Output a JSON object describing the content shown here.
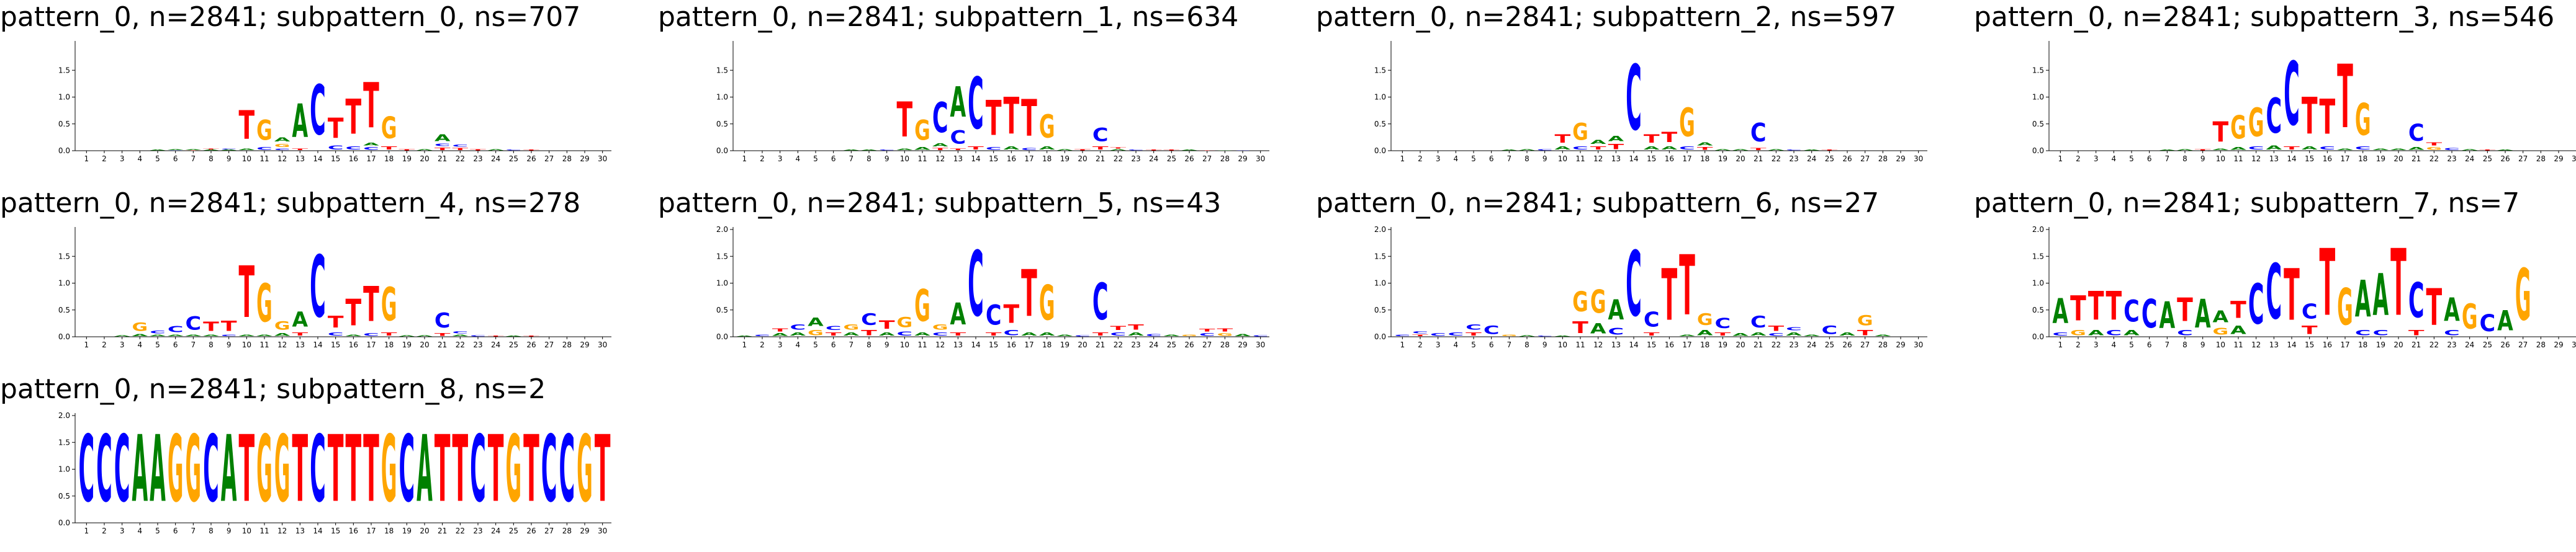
{
  "colors": {
    "A": "#008000",
    "C": "#0000ff",
    "G": "#ffa500",
    "T": "#ff0000"
  },
  "chart_data": [
    {
      "type": "sequence-logo",
      "title": "pattern_0, n=2841; subpattern_0, ns=707",
      "positions": [
        1,
        2,
        3,
        4,
        5,
        6,
        7,
        8,
        9,
        10,
        11,
        12,
        13,
        14,
        15,
        16,
        17,
        18,
        19,
        20,
        21,
        22,
        23,
        24,
        25,
        26,
        27,
        28,
        29,
        30
      ],
      "yticks": [
        "0.0",
        "0.5",
        "1.0",
        "1.5"
      ],
      "ylim": [
        0,
        2.0
      ],
      "letters": [
        {},
        {},
        {},
        {},
        {
          "A": 0.02
        },
        {
          "A": 0.02,
          "C": 0.01
        },
        {
          "A": 0.02,
          "T": 0.01
        },
        {
          "A": 0.02,
          "T": 0.02
        },
        {
          "A": 0.02,
          "C": 0.02
        },
        {
          "A": 0.05,
          "T": 0.85
        },
        {
          "C": 0.08,
          "G": 0.6
        },
        {
          "A": 0.12,
          "C": 0.05,
          "G": 0.1
        },
        {
          "T": 0.05,
          "A": 1.0
        },
        {
          "C": 1.5
        },
        {
          "C": 0.12,
          "T": 0.6
        },
        {
          "C": 0.1,
          "T": 1.05
        },
        {
          "C": 0.08,
          "A": 0.08,
          "T": 1.35
        },
        {
          "T": 0.1,
          "G": 0.65
        },
        {
          "T": 0.03
        },
        {
          "A": 0.03
        },
        {
          "T": 0.07,
          "C": 0.07,
          "A": 0.2,
          "C2": 0.0
        },
        {
          "T": 0.06,
          "C": 0.06
        },
        {
          "T": 0.04
        },
        {
          "A": 0.03
        },
        {
          "C": 0.02
        },
        {
          "T": 0.02
        },
        {},
        {},
        {},
        {}
      ]
    },
    {
      "type": "sequence-logo",
      "title": "pattern_0, n=2841; subpattern_1, ns=634",
      "positions": [
        1,
        2,
        3,
        4,
        5,
        6,
        7,
        8,
        9,
        10,
        11,
        12,
        13,
        14,
        15,
        16,
        17,
        18,
        19,
        20,
        21,
        22,
        23,
        24,
        25,
        26,
        27,
        28,
        29,
        30
      ],
      "yticks": [
        "0.0",
        "0.5",
        "1.0",
        "1.5"
      ],
      "ylim": [
        0,
        2.0
      ],
      "letters": [
        {},
        {},
        {},
        {},
        {},
        {},
        {
          "A": 0.02
        },
        {
          "A": 0.02
        },
        {
          "C": 0.02
        },
        {
          "A": 0.05,
          "T": 1.05
        },
        {
          "A": 0.08,
          "G": 0.6
        },
        {
          "T": 0.06,
          "A": 0.1,
          "C": 0.9
        },
        {
          "T": 0.05,
          "C": 0.4,
          "A": 0.9
        },
        {
          "T": 0.1,
          "C": 1.55
        },
        {
          "C": 0.08,
          "T": 1.05
        },
        {
          "A": 0.1,
          "T": 1.1
        },
        {
          "C": 0.06,
          "T": 1.1
        },
        {
          "A": 0.1,
          "G": 0.7
        },
        {
          "A": 0.04
        },
        {
          "T": 0.03
        },
        {
          "T": 0.1,
          "C": 0.4
        },
        {
          "A": 0.03,
          "T": 0.04
        },
        {
          "C": 0.02
        },
        {
          "T": 0.02
        },
        {
          "T": 0.02
        },
        {
          "A": 0.02
        },
        {
          "T": 0.01
        },
        {
          "A": 0.01
        },
        {
          "C": 0.01
        },
        {}
      ]
    },
    {
      "type": "sequence-logo",
      "title": "pattern_0, n=2841; subpattern_2, ns=597",
      "positions": [
        1,
        2,
        3,
        4,
        5,
        6,
        7,
        8,
        9,
        10,
        11,
        12,
        13,
        14,
        15,
        16,
        17,
        18,
        19,
        20,
        21,
        22,
        23,
        24,
        25,
        26,
        27,
        28,
        29,
        30
      ],
      "yticks": [
        "0.0",
        "0.5",
        "1.0",
        "1.5"
      ],
      "ylim": [
        0,
        2.0
      ],
      "letters": [
        {},
        {},
        {},
        {},
        {},
        {},
        {
          "A": 0.02
        },
        {
          "A": 0.03
        },
        {
          "C": 0.03
        },
        {
          "A": 0.1,
          "T": 0.25
        },
        {
          "C": 0.1,
          "G": 0.5
        },
        {
          "A": 0.12,
          "T": 0.1
        },
        {
          "T": 0.15,
          "A": 0.15
        },
        {
          "C": 1.95
        },
        {
          "A": 0.1,
          "T": 0.25
        },
        {
          "A": 0.1,
          "T": 0.3
        },
        {
          "C": 0.1,
          "G": 0.85
        },
        {
          "A": 0.1,
          "T": 0.08
        },
        {
          "A": 0.04
        },
        {
          "A": 0.03
        },
        {
          "T": 0.06,
          "C": 0.55
        },
        {
          "A": 0.03
        },
        {
          "C": 0.02
        },
        {
          "A": 0.02
        },
        {
          "T": 0.02
        },
        {},
        {},
        {},
        {},
        {}
      ]
    },
    {
      "type": "sequence-logo",
      "title": "pattern_0, n=2841; subpattern_3, ns=546",
      "positions": [
        1,
        2,
        3,
        4,
        5,
        6,
        7,
        8,
        9,
        10,
        11,
        12,
        13,
        14,
        15,
        16,
        17,
        18,
        19,
        20,
        21,
        22,
        23,
        24,
        25,
        26,
        27,
        28,
        29,
        30
      ],
      "yticks": [
        "0.0",
        "0.5",
        "1.0",
        "1.5"
      ],
      "ylim": [
        0,
        2.0
      ],
      "letters": [
        {},
        {},
        {},
        {},
        {},
        {},
        {
          "A": 0.02
        },
        {
          "A": 0.03
        },
        {
          "T": 0.04
        },
        {
          "A": 0.05,
          "T": 0.6
        },
        {
          "A": 0.08,
          "G": 0.7
        },
        {
          "C": 0.1,
          "G": 0.85
        },
        {
          "A": 0.12,
          "C": 1.05
        },
        {
          "T": 0.1,
          "C": 1.9
        },
        {
          "A": 0.1,
          "T": 1.1
        },
        {
          "C": 0.1,
          "T": 1.05
        },
        {
          "A": 0.05,
          "T": 1.9
        },
        {
          "C": 0.1,
          "G": 0.95
        },
        {
          "A": 0.05
        },
        {
          "A": 0.05
        },
        {
          "A": 0.08,
          "C": 0.5
        },
        {
          "T": 0.1,
          "G": 0.08
        },
        {
          "C": 0.06
        },
        {
          "A": 0.03
        },
        {
          "T": 0.02
        },
        {
          "A": 0.02
        },
        {},
        {},
        {},
        {}
      ]
    },
    {
      "type": "sequence-logo",
      "title": "pattern_0, n=2841; subpattern_4, ns=278",
      "positions": [
        1,
        2,
        3,
        4,
        5,
        6,
        7,
        8,
        9,
        10,
        11,
        12,
        13,
        14,
        15,
        16,
        17,
        18,
        19,
        20,
        21,
        22,
        23,
        24,
        25,
        26,
        27,
        28,
        29,
        30
      ],
      "yticks": [
        "0.0",
        "0.5",
        "1.0",
        "1.5"
      ],
      "ylim": [
        0,
        2.0
      ],
      "letters": [
        {},
        {},
        {
          "A": 0.03
        },
        {
          "A": 0.06,
          "G": 0.25
        },
        {
          "A": 0.05,
          "C": 0.08
        },
        {
          "A": 0.05,
          "C": 0.18
        },
        {
          "A": 0.05,
          "C": 0.4
        },
        {
          "A": 0.05,
          "T": 0.28
        },
        {
          "C": 0.05,
          "T": 0.3
        },
        {
          "A": 0.05,
          "T": 1.55
        },
        {
          "A": 0.05,
          "G": 1.15
        },
        {
          "A": 0.08,
          "G": 0.25
        },
        {
          "T": 0.1,
          "A": 0.45
        },
        {
          "C": 1.85
        },
        {
          "C": 0.1,
          "T": 0.35
        },
        {
          "A": 0.05,
          "T": 0.8
        },
        {
          "C": 0.08,
          "T": 1.05
        },
        {
          "T": 0.1,
          "G": 1.0
        },
        {
          "A": 0.04
        },
        {
          "A": 0.03
        },
        {
          "T": 0.08,
          "C": 0.45
        },
        {
          "A": 0.05,
          "C": 0.06
        },
        {
          "C": 0.03
        },
        {
          "T": 0.02
        },
        {
          "A": 0.02
        },
        {
          "T": 0.02
        },
        {},
        {},
        {},
        {}
      ]
    },
    {
      "type": "sequence-logo",
      "title": "pattern_0, n=2841; subpattern_5, ns=43",
      "positions": [
        1,
        2,
        3,
        4,
        5,
        6,
        7,
        8,
        9,
        10,
        11,
        12,
        13,
        14,
        15,
        16,
        17,
        18,
        19,
        20,
        21,
        22,
        23,
        24,
        25,
        26,
        27,
        28,
        29,
        30
      ],
      "yticks": [
        "0.0",
        "0.5",
        "1.0",
        "1.5",
        "2.0"
      ],
      "ylim": [
        0,
        2.0
      ],
      "letters": [
        {
          "A": 0.02
        },
        {
          "C": 0.05
        },
        {
          "T": 0.1,
          "A": 0.08
        },
        {
          "C": 0.15,
          "A": 0.1
        },
        {
          "G": 0.15,
          "A": 0.25
        },
        {
          "T": 0.1,
          "C": 0.12
        },
        {
          "A": 0.1,
          "G": 0.15
        },
        {
          "T": 0.15,
          "C": 0.35
        },
        {
          "A": 0.1,
          "T": 0.25
        },
        {
          "C": 0.12,
          "G": 0.3
        },
        {
          "A": 0.1,
          "G": 0.95
        },
        {
          "C": 0.1,
          "G": 0.15
        },
        {
          "T": 0.1,
          "A": 0.65
        },
        {
          "C": 1.95
        },
        {
          "T": 0.1,
          "C": 0.6
        },
        {
          "C": 0.15,
          "T": 0.55
        },
        {
          "A": 0.1,
          "T": 1.4
        },
        {
          "A": 0.1,
          "G": 1.05
        },
        {
          "A": 0.05
        },
        {
          "C": 0.04
        },
        {
          "T": 0.1,
          "C": 1.1
        },
        {
          "C": 0.1,
          "T": 0.12
        },
        {
          "A": 0.1,
          "T": 0.15
        },
        {
          "C": 0.06
        },
        {
          "A": 0.05
        },
        {
          "G": 0.05
        },
        {
          "C": 0.08,
          "T": 0.08
        },
        {
          "G": 0.08,
          "T": 0.1
        },
        {
          "A": 0.06
        },
        {
          "C": 0.04
        }
      ]
    },
    {
      "type": "sequence-logo",
      "title": "pattern_0, n=2841; subpattern_6, ns=27",
      "positions": [
        1,
        2,
        3,
        4,
        5,
        6,
        7,
        8,
        9,
        10,
        11,
        12,
        13,
        14,
        15,
        16,
        17,
        18,
        19,
        20,
        21,
        22,
        23,
        24,
        25,
        26,
        27,
        28,
        29,
        30
      ],
      "yticks": [
        "0.0",
        "0.5",
        "1.0",
        "1.5",
        "2.0"
      ],
      "ylim": [
        0,
        2.0
      ],
      "letters": [
        {
          "C": 0.05
        },
        {
          "T": 0.05,
          "C": 0.06
        },
        {
          "C": 0.08
        },
        {
          "C": 0.1
        },
        {
          "T": 0.1,
          "C": 0.15
        },
        {
          "C": 0.25
        },
        {
          "G": 0.05
        },
        {
          "A": 0.03
        },
        {
          "C": 0.02
        },
        {
          "A": 0.02
        },
        {
          "T": 0.35,
          "G": 0.6
        },
        {
          "A": 0.3,
          "G": 0.7
        },
        {
          "C": 0.2,
          "A": 0.6
        },
        {
          "C": 1.95
        },
        {
          "T": 0.1,
          "C": 0.45
        },
        {
          "T": 0.3,
          "T2": 0.0,
          "G": 0.0,
          "C": 0.0,
          "A": 0.0,
          "TT": 0.0,
          "t": 1.25
        },
        {
          "A": 0.05,
          "T": 1.8
        },
        {
          "A": 0.15,
          "G": 0.35
        },
        {
          "T": 0.1,
          "C": 0.3
        },
        {
          "A": 0.08
        },
        {
          "A": 0.1,
          "C": 0.35
        },
        {
          "C": 0.08,
          "T": 0.15
        },
        {
          "A": 0.1,
          "C": 0.1
        },
        {
          "A": 0.05
        },
        {
          "C": 0.25
        },
        {
          "A": 0.1
        },
        {
          "T": 0.15,
          "G": 0.3
        },
        {
          "A": 0.05
        },
        {},
        {}
      ]
    },
    {
      "type": "sequence-logo",
      "title": "pattern_0, n=2841; subpattern_7, ns=7",
      "positions": [
        1,
        2,
        3,
        4,
        5,
        6,
        7,
        8,
        9,
        10,
        11,
        12,
        13,
        14,
        15,
        16,
        17,
        18,
        19,
        20,
        21,
        22,
        23,
        24,
        25,
        26,
        27,
        28,
        29,
        30
      ],
      "yticks": [
        "0.0",
        "0.5",
        "1.0",
        "1.5",
        "2.0"
      ],
      "ylim": [
        0,
        2.0
      ],
      "letters": [
        {
          "C": 0.1,
          "A": 0.75
        },
        {
          "G": 0.15,
          "T": 0.75
        },
        {
          "A": 0.15,
          "T": 0.85
        },
        {
          "C": 0.15,
          "T": 0.85
        },
        {
          "A": 0.15,
          "C": 0.65
        },
        {
          "C": 0.15,
          "C2": 0.0,
          "c": 0.7
        },
        {
          "A": 0.15,
          "A2": 0.0,
          "a": 0.65
        },
        {
          "C": 0.15,
          "T": 0.7
        },
        {
          "A": 0.3,
          "A2": 0.0,
          "a": 0.55
        },
        {
          "G": 0.2,
          "A": 0.35
        },
        {
          "A": 0.25,
          "T": 0.5
        },
        {
          "C": 1.2
        },
        {
          "C": 1.65
        },
        {
          "T": 1.55
        },
        {
          "T": 0.25,
          "C": 0.45
        },
        {
          "T": 2.0
        },
        {
          "G": 1.1
        },
        {
          "C": 0.15,
          "A": 1.1
        },
        {
          "C": 0.15,
          "A": 1.25
        },
        {
          "T": 2.0
        },
        {
          "T": 0.15,
          "C": 1.05
        },
        {
          "T": 0.2,
          "T2": 0.0,
          "t": 0.9
        },
        {
          "C": 0.15,
          "A": 0.7
        },
        {
          "G": 0.2,
          "G2": 0.0,
          "g": 0.55
        },
        {
          "C": 0.5
        },
        {
          "A": 0.15,
          "A2": 0.0,
          "a": 0.45
        },
        {
          "G": 1.55
        },
        {},
        {},
        {}
      ]
    },
    {
      "type": "sequence-logo",
      "title": "pattern_0, n=2841; subpattern_8, ns=2",
      "positions": [
        1,
        2,
        3,
        4,
        5,
        6,
        7,
        8,
        9,
        10,
        11,
        12,
        13,
        14,
        15,
        16,
        17,
        18,
        19,
        20,
        21,
        22,
        23,
        24,
        25,
        26,
        27,
        28,
        29,
        30
      ],
      "yticks": [
        "0.0",
        "0.5",
        "1.0",
        "1.5",
        "2.0"
      ],
      "ylim": [
        0,
        2.0
      ],
      "sequence": "CCCAAGGCATGGTCTTTGCATTCTGTCCGT",
      "letters": []
    }
  ]
}
